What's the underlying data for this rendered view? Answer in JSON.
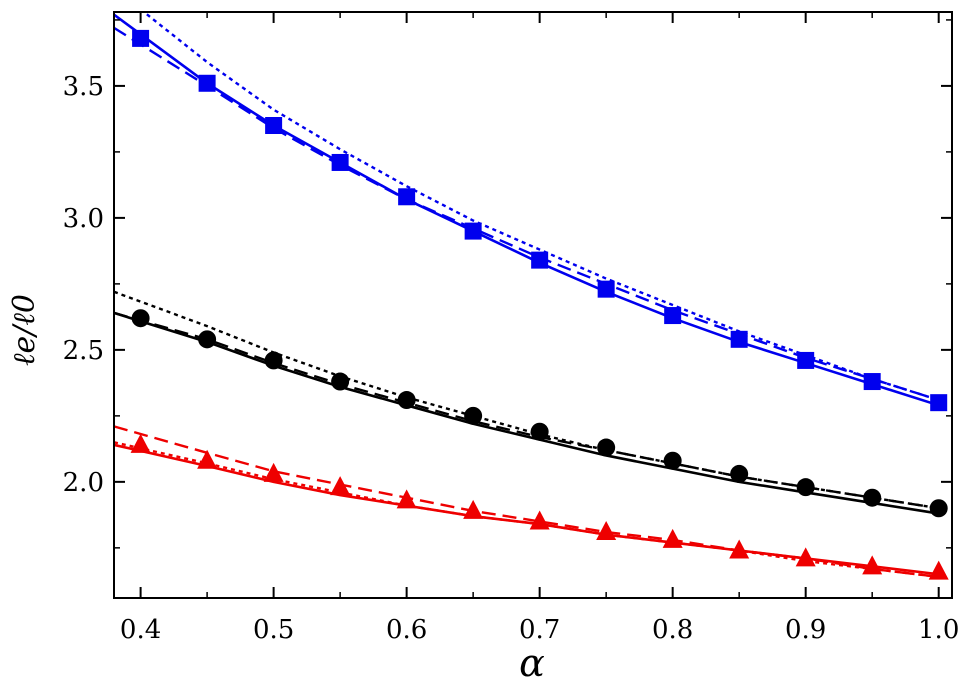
{
  "chart_data": {
    "type": "line",
    "xlabel": "α",
    "ylabel": "ℓe/ℓ0",
    "xlim": [
      0.38,
      1.01
    ],
    "ylim": [
      1.56,
      3.78
    ],
    "xticks": [
      0.4,
      0.5,
      0.6,
      0.7,
      0.8,
      0.9,
      1.0
    ],
    "xtick_labels": [
      "0.4",
      "0.5",
      "0.6",
      "0.7",
      "0.8",
      "0.9",
      "1.0"
    ],
    "yticks": [
      2.0,
      2.5,
      3.0,
      3.5
    ],
    "ytick_labels": [
      "2.0",
      "2.5",
      "3.0",
      "3.5"
    ],
    "grid": false,
    "legend": "none",
    "series": [
      {
        "color": "#0000ee",
        "marker": "square",
        "x": [
          0.4,
          0.45,
          0.5,
          0.55,
          0.6,
          0.65,
          0.7,
          0.75,
          0.8,
          0.85,
          0.9,
          0.95,
          1.0
        ],
        "points": [
          3.68,
          3.51,
          3.35,
          3.21,
          3.08,
          2.95,
          2.84,
          2.73,
          2.63,
          2.54,
          2.46,
          2.38,
          2.3
        ],
        "solid": [
          3.77,
          3.51,
          3.35,
          3.21,
          3.07,
          2.95,
          2.83,
          2.72,
          2.62,
          2.53,
          2.45,
          2.37,
          2.29
        ],
        "solid_x0": 0.38,
        "dashed": [
          3.72,
          3.5,
          3.34,
          3.2,
          3.07,
          2.96,
          2.85,
          2.75,
          2.65,
          2.56,
          2.47,
          2.39,
          2.31
        ],
        "dashed_x0": 0.38,
        "dotted": [
          3.79,
          3.59,
          3.41,
          3.26,
          3.12,
          2.99,
          2.88,
          2.77,
          2.67,
          2.57,
          2.48,
          2.39,
          2.31
        ],
        "dotted_x0": 0.4
      },
      {
        "color": "#000000",
        "marker": "circle",
        "x": [
          0.4,
          0.45,
          0.5,
          0.55,
          0.6,
          0.65,
          0.7,
          0.75,
          0.8,
          0.85,
          0.9,
          0.95,
          1.0
        ],
        "points": [
          2.62,
          2.54,
          2.46,
          2.38,
          2.31,
          2.25,
          2.19,
          2.13,
          2.08,
          2.03,
          1.98,
          1.94,
          1.9
        ],
        "solid": [
          2.64,
          2.53,
          2.44,
          2.36,
          2.29,
          2.22,
          2.16,
          2.1,
          2.05,
          2.0,
          1.96,
          1.92,
          1.88
        ],
        "solid_x0": 0.38,
        "dashed": [
          2.64,
          2.54,
          2.45,
          2.37,
          2.3,
          2.23,
          2.17,
          2.12,
          2.07,
          2.02,
          1.98,
          1.94,
          1.9
        ],
        "dashed_x0": 0.38,
        "dotted": [
          2.72,
          2.59,
          2.49,
          2.4,
          2.32,
          2.25,
          2.18,
          2.12,
          2.07,
          2.02,
          1.98,
          1.94,
          1.9
        ],
        "dotted_x0": 0.38
      },
      {
        "color": "#ee0000",
        "marker": "triangle",
        "x": [
          0.4,
          0.45,
          0.5,
          0.55,
          0.6,
          0.65,
          0.7,
          0.75,
          0.8,
          0.85,
          0.9,
          0.95,
          1.0
        ],
        "points": [
          2.14,
          2.08,
          2.03,
          1.98,
          1.93,
          1.89,
          1.85,
          1.81,
          1.78,
          1.74,
          1.71,
          1.68,
          1.66
        ],
        "solid": [
          2.14,
          2.06,
          2.0,
          1.95,
          1.91,
          1.87,
          1.84,
          1.8,
          1.77,
          1.74,
          1.71,
          1.68,
          1.65
        ],
        "solid_x0": 0.38,
        "dashed": [
          2.21,
          2.11,
          2.04,
          1.99,
          1.94,
          1.89,
          1.85,
          1.81,
          1.78,
          1.74,
          1.71,
          1.67,
          1.64
        ],
        "dashed_x0": 0.38,
        "dotted": [
          2.15,
          2.07,
          2.01,
          1.96,
          1.91,
          1.87,
          1.84,
          1.8,
          1.77,
          1.74,
          1.7,
          1.67,
          1.64
        ],
        "dotted_x0": 0.38
      }
    ]
  }
}
